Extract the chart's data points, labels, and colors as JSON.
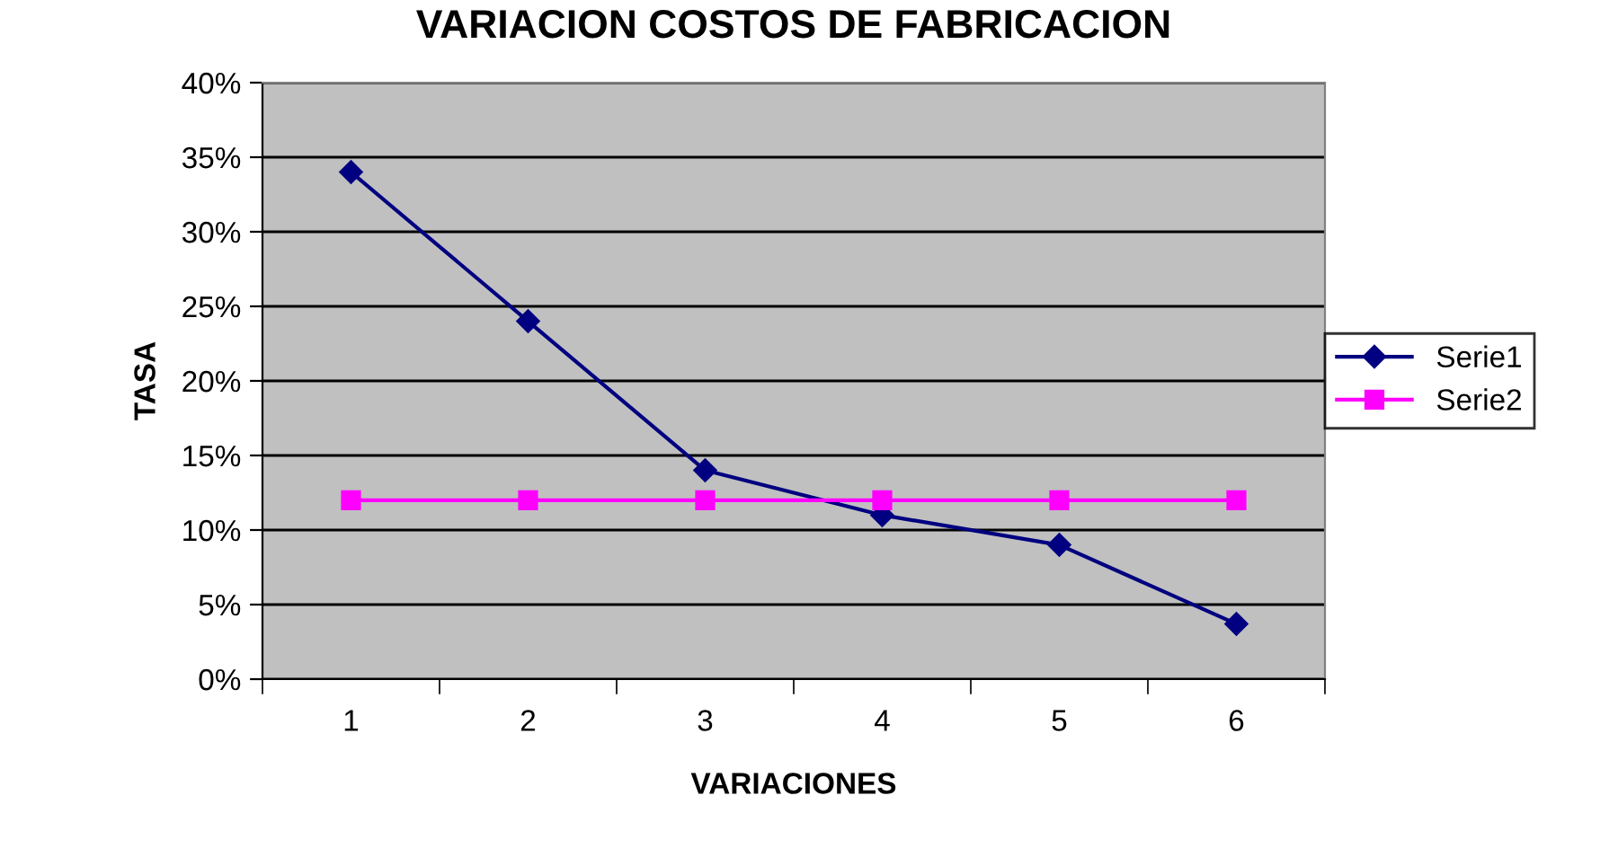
{
  "chart_data": {
    "type": "line",
    "title": "VARIACION COSTOS DE FABRICACION",
    "xlabel": "VARIACIONES",
    "ylabel": "TASA",
    "categories": [
      "1",
      "2",
      "3",
      "4",
      "5",
      "6"
    ],
    "series": [
      {
        "name": "Serie1",
        "color": "#000080",
        "marker": "diamond",
        "values": [
          34,
          24,
          14,
          11,
          9,
          3.7
        ]
      },
      {
        "name": "Serie2",
        "color": "#ff00ff",
        "marker": "square",
        "values": [
          12,
          12,
          12,
          12,
          12,
          12
        ]
      }
    ],
    "ylim": [
      0,
      40
    ],
    "yticks": [
      {
        "value": 0,
        "label": "0%"
      },
      {
        "value": 5,
        "label": "5%"
      },
      {
        "value": 10,
        "label": "10%"
      },
      {
        "value": 15,
        "label": "15%"
      },
      {
        "value": 20,
        "label": "20%"
      },
      {
        "value": 25,
        "label": "25%"
      },
      {
        "value": 30,
        "label": "30%"
      },
      {
        "value": 35,
        "label": "35%"
      },
      {
        "value": 40,
        "label": "40%"
      }
    ],
    "grid": "y",
    "legend": "right",
    "line_style": "solid"
  }
}
